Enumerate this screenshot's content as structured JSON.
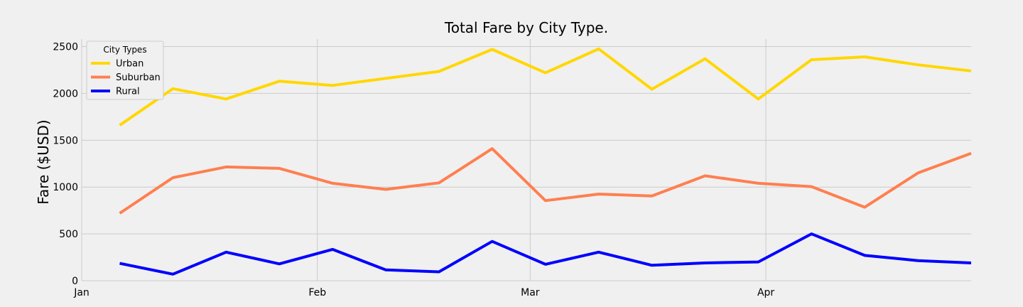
{
  "chart_data": {
    "type": "line",
    "title": "Total Fare by City Type.",
    "xlabel": "",
    "ylabel": "Fare ($USD)",
    "x": [
      "2019-01-06",
      "2019-01-13",
      "2019-01-20",
      "2019-01-27",
      "2019-02-03",
      "2019-02-10",
      "2019-02-17",
      "2019-02-24",
      "2019-03-03",
      "2019-03-10",
      "2019-03-17",
      "2019-03-24",
      "2019-03-31",
      "2019-04-07",
      "2019-04-14",
      "2019-04-21",
      "2019-04-28"
    ],
    "xlim": [
      "2019-01-01",
      "2019-04-28"
    ],
    "xticks": [
      {
        "date": "2019-01-01",
        "label": "Jan"
      },
      {
        "date": "2019-02-01",
        "label": "Feb"
      },
      {
        "date": "2019-03-01",
        "label": "Mar"
      },
      {
        "date": "2019-04-01",
        "label": "Apr"
      }
    ],
    "ylim": [
      0,
      2580
    ],
    "yticks": [
      0,
      500,
      1000,
      1500,
      2000,
      2500
    ],
    "grid": true,
    "legend": {
      "title": "City Types",
      "position": "top-left"
    },
    "series": [
      {
        "name": "Urban",
        "color": "#ffd700",
        "values": [
          1660,
          2050,
          1940,
          2130,
          2085,
          2160,
          2235,
          2470,
          2220,
          2475,
          2045,
          2370,
          1940,
          2360,
          2390,
          2305,
          2240
        ]
      },
      {
        "name": "Suburban",
        "color": "#ff7f50",
        "values": [
          720,
          1100,
          1215,
          1200,
          1040,
          975,
          1045,
          1410,
          855,
          925,
          905,
          1120,
          1040,
          1005,
          785,
          1150,
          1360
        ]
      },
      {
        "name": "Rural",
        "color": "#0000ff",
        "values": [
          185,
          70,
          305,
          180,
          335,
          115,
          95,
          420,
          175,
          305,
          165,
          190,
          200,
          500,
          270,
          215,
          190
        ]
      }
    ]
  }
}
